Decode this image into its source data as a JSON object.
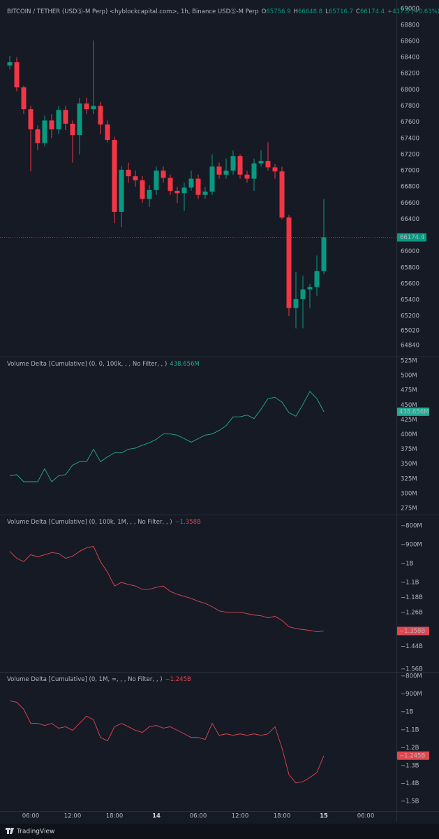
{
  "time_axis": [
    "06:00",
    "12:00",
    "18:00",
    "14",
    "06:00",
    "12:00",
    "18:00",
    "15",
    "06:00"
  ],
  "footer": {
    "brand": "TradingView"
  },
  "chart_data": [
    {
      "type": "candlestick",
      "title": "BITCOIN / TETHER (USDⓈ-M Perp) <hyblockcapital.com>, 1h, Binance USDⓈ-M Perp",
      "legend": [
        {
          "key": "O",
          "value": 65756.9
        },
        {
          "key": "H",
          "value": 66648.8
        },
        {
          "key": "L",
          "value": 65716.7
        },
        {
          "key": "C",
          "value": 66174.4
        }
      ],
      "change": "+417.5 (+0.63%)",
      "up_color": "#089981",
      "down_color": "#f23645",
      "ohlc": {
        "open": [
          68300,
          68340,
          68030,
          67760,
          67510,
          67340,
          67620,
          67510,
          67750,
          67580,
          67440,
          67830,
          67760,
          67800,
          67570,
          67380,
          66490,
          67010,
          66930,
          66880,
          66650,
          66760,
          67000,
          66910,
          66750,
          66720,
          66790,
          66900,
          66700,
          66740,
          67050,
          66950,
          67000,
          67180,
          66950,
          66900,
          67090,
          67120,
          67040,
          66990,
          66420,
          65300,
          65410,
          65530,
          65560,
          65756.9
        ],
        "high": [
          68420,
          68400,
          68050,
          67800,
          67560,
          67680,
          67700,
          67800,
          67800,
          67620,
          67900,
          67900,
          68610,
          67850,
          67620,
          67420,
          67060,
          67100,
          67000,
          66930,
          66820,
          67050,
          67050,
          66950,
          66800,
          66850,
          67000,
          66950,
          66800,
          67200,
          67100,
          67150,
          67250,
          67200,
          67000,
          67150,
          67250,
          67350,
          67080,
          67050,
          66450,
          65750,
          65700,
          65600,
          65950,
          66648.8
        ],
        "low": [
          68250,
          67980,
          67700,
          66990,
          67250,
          67300,
          67400,
          67450,
          67500,
          67100,
          67200,
          67700,
          67700,
          67450,
          67350,
          66350,
          66300,
          66850,
          66800,
          66600,
          66550,
          66700,
          66850,
          66700,
          66600,
          66500,
          66750,
          66650,
          66650,
          66700,
          66900,
          66900,
          66950,
          66900,
          66850,
          66750,
          67050,
          67000,
          66900,
          66400,
          65200,
          65050,
          65050,
          65300,
          65450,
          65716.7
        ],
        "close": [
          68340,
          68030,
          67760,
          67510,
          67340,
          67620,
          67510,
          67750,
          67580,
          67440,
          67830,
          67760,
          67800,
          67570,
          67380,
          66490,
          67010,
          66930,
          66880,
          66650,
          66760,
          67000,
          66910,
          66750,
          66720,
          66790,
          66900,
          66700,
          66740,
          67050,
          66950,
          67000,
          67180,
          66950,
          66900,
          67090,
          67120,
          67040,
          66990,
          66420,
          65300,
          65410,
          65530,
          65560,
          65756.9,
          66174.4
        ]
      },
      "last_price": 66174.4,
      "ylim": [
        64700,
        69110
      ],
      "yticks": [
        69000,
        68800,
        68600,
        68400,
        68200,
        68000,
        67800,
        67600,
        67400,
        67200,
        67000,
        66800,
        66600,
        66400,
        66000,
        65800,
        65600,
        65400,
        65200,
        65020,
        64840
      ]
    },
    {
      "type": "line",
      "title": "Volume Delta [Cumulative] (0, 0, 100k, , , No Filter, , )",
      "color": "#22ab94",
      "values": [
        330,
        332,
        320,
        320,
        320,
        342,
        320,
        330,
        332,
        348,
        354,
        354,
        375,
        354,
        362,
        369,
        369,
        375,
        377,
        382,
        386,
        392,
        401,
        401,
        399,
        393,
        387,
        393,
        399,
        401,
        407,
        415,
        430,
        430,
        433,
        427,
        443,
        461,
        463,
        455,
        437,
        431,
        451,
        473,
        461,
        438.656
      ],
      "last_value_label": "438.656M",
      "ylim": [
        264.3,
        532.1
      ],
      "yticks": [
        {
          "value": 525,
          "label": "525M"
        },
        {
          "value": 500,
          "label": "500M"
        },
        {
          "value": 475,
          "label": "475M"
        },
        {
          "value": 450,
          "label": "450M"
        },
        {
          "value": 425,
          "label": "425M"
        },
        {
          "value": 400,
          "label": "400M"
        },
        {
          "value": 375,
          "label": "375M"
        },
        {
          "value": 350,
          "label": "350M"
        },
        {
          "value": 325,
          "label": "325M"
        },
        {
          "value": 300,
          "label": "300M"
        },
        {
          "value": 275,
          "label": "275M"
        }
      ]
    },
    {
      "type": "line",
      "title": "Volume Delta [Cumulative] (0, 100k, 1M, , , No Filter, , )",
      "color": "#e0474f",
      "values": [
        -935,
        -972,
        -990,
        -953,
        -964,
        -953,
        -942,
        -946,
        -972,
        -961,
        -935,
        -916,
        -909,
        -990,
        -1045,
        -1119,
        -1100,
        -1111,
        -1119,
        -1137,
        -1137,
        -1126,
        -1119,
        -1148,
        -1163,
        -1174,
        -1185,
        -1200,
        -1211,
        -1229,
        -1251,
        -1258,
        -1258,
        -1258,
        -1266,
        -1273,
        -1277,
        -1288,
        -1280,
        -1302,
        -1335,
        -1345,
        -1350,
        -1355,
        -1362,
        -1358
      ],
      "last_value_label": "−1.358B",
      "ylim": [
        -1575,
        -740
      ],
      "yticks": [
        {
          "value": -800,
          "label": "−800M"
        },
        {
          "value": -900,
          "label": "−900M"
        },
        {
          "value": -1000,
          "label": "−1B"
        },
        {
          "value": -1100,
          "label": "−1.1B"
        },
        {
          "value": -1180,
          "label": "−1.18B"
        },
        {
          "value": -1260,
          "label": "−1.26B"
        },
        {
          "value": -1440,
          "label": "−1.44B"
        },
        {
          "value": -1560,
          "label": "−1.56B"
        }
      ]
    },
    {
      "type": "line",
      "title": "Volume Delta [Cumulative] (0, 1M, ∞, , , No Filter, , )",
      "color": "#e0474f",
      "values": [
        -938,
        -946,
        -985,
        -1064,
        -1064,
        -1076,
        -1064,
        -1091,
        -1083,
        -1103,
        -1064,
        -1024,
        -1044,
        -1143,
        -1162,
        -1083,
        -1064,
        -1083,
        -1103,
        -1115,
        -1083,
        -1076,
        -1091,
        -1083,
        -1103,
        -1123,
        -1143,
        -1143,
        -1154,
        -1064,
        -1131,
        -1123,
        -1131,
        -1123,
        -1131,
        -1123,
        -1131,
        -1123,
        -1083,
        -1202,
        -1351,
        -1398,
        -1391,
        -1367,
        -1339,
        -1245
      ],
      "last_value_label": "−1.245B",
      "ylim": [
        -1555,
        -776
      ],
      "yticks": [
        {
          "value": -800,
          "label": "−800M"
        },
        {
          "value": -900,
          "label": "−900M"
        },
        {
          "value": -1000,
          "label": "−1B"
        },
        {
          "value": -1100,
          "label": "−1.1B"
        },
        {
          "value": -1200,
          "label": "−1.2B"
        },
        {
          "value": -1300,
          "label": "−1.3B"
        },
        {
          "value": -1400,
          "label": "−1.4B"
        },
        {
          "value": -1500,
          "label": "−1.5B"
        }
      ]
    }
  ]
}
